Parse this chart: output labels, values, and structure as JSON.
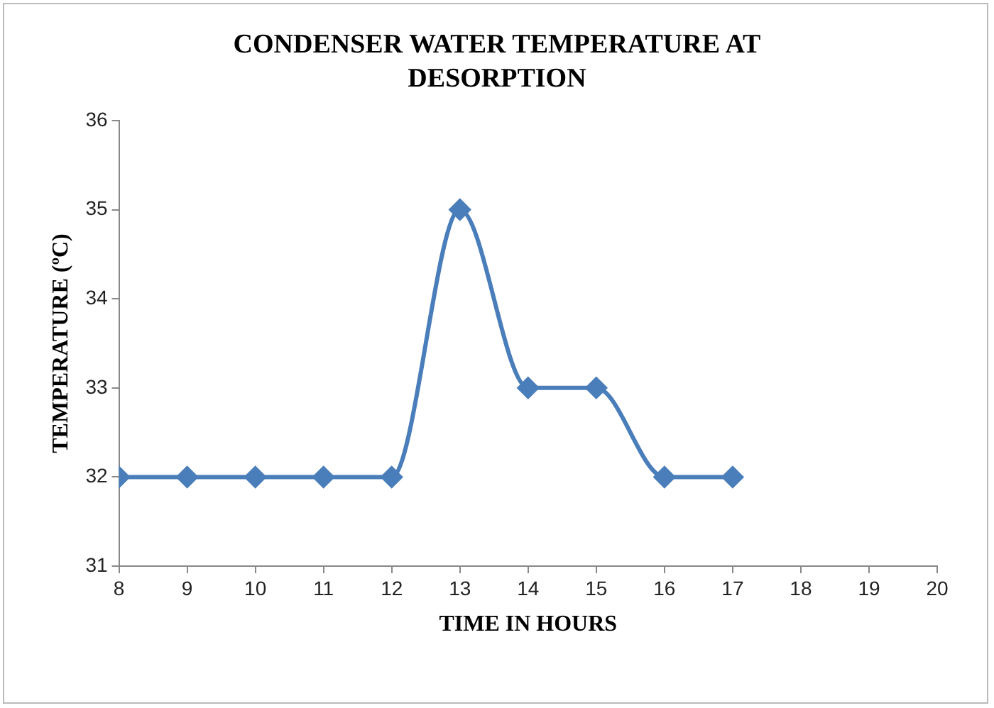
{
  "chart_data": {
    "type": "line",
    "title": "CONDENSER WATER TEMPERATURE AT DESORPTION",
    "xlabel": "TIME IN HOURS",
    "ylabel": "TEMPERATURE (ºC)",
    "x": [
      8,
      9,
      10,
      11,
      12,
      13,
      14,
      15,
      16,
      17
    ],
    "series": [
      {
        "color": "#4a7ebb",
        "values": [
          32,
          32,
          32,
          32,
          32,
          35,
          33,
          33,
          32,
          32
        ]
      }
    ],
    "xlim": [
      8,
      20
    ],
    "xticks": [
      8,
      9,
      10,
      11,
      12,
      13,
      14,
      15,
      16,
      17,
      18,
      19,
      20
    ],
    "ylim": [
      31,
      36
    ],
    "yticks": [
      31,
      32,
      33,
      34,
      35,
      36
    ],
    "grid": false,
    "legend": false,
    "marker": "diamond",
    "line_style": "solid"
  }
}
